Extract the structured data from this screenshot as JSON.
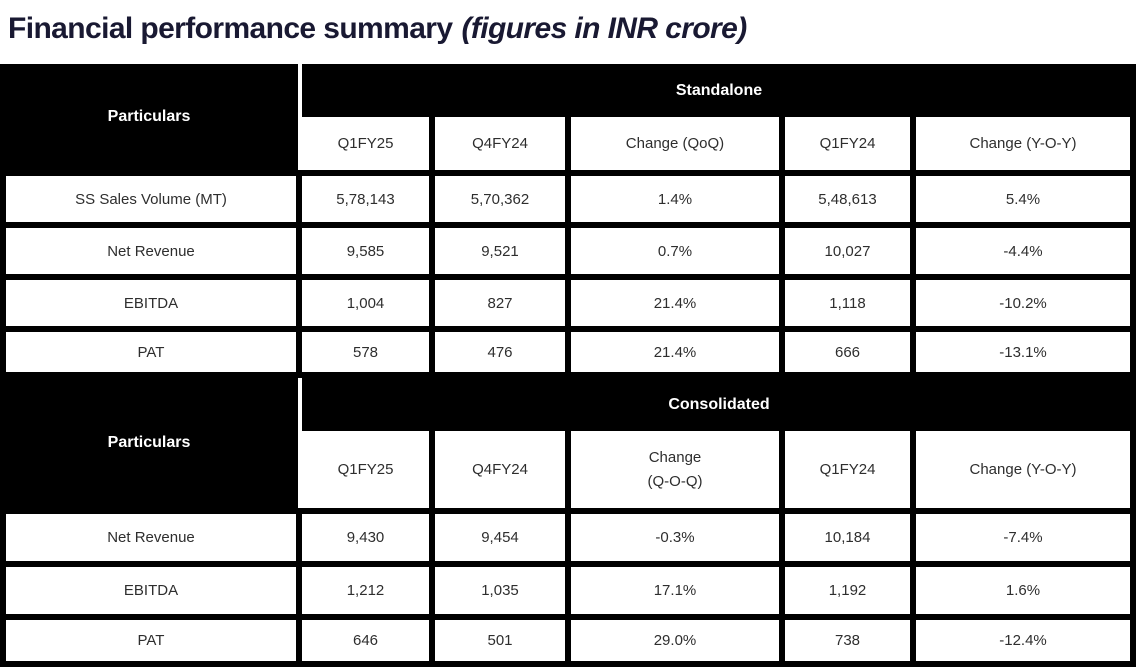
{
  "title": {
    "main": "Financial performance summary",
    "note": "(figures in INR crore)"
  },
  "colors": {
    "header_bg": "#000000",
    "header_text": "#ffffff",
    "title_text": "#191932",
    "border": "#000000",
    "cell_text": "#2e2e2e",
    "cell_bg": "#ffffff"
  },
  "sections": [
    {
      "name": "Standalone",
      "particulars_label": "Particulars",
      "columns": [
        "Q1FY25",
        "Q4FY24",
        "Change (QoQ)",
        "Q1FY24",
        "Change (Y-O-Y)"
      ],
      "rows": [
        {
          "label": "SS Sales Volume (MT)",
          "values": [
            "5,78,143",
            "5,70,362",
            "1.4%",
            "5,48,613",
            "5.4%"
          ]
        },
        {
          "label": "Net Revenue",
          "values": [
            "9,585",
            "9,521",
            "0.7%",
            "10,027",
            "-4.4%"
          ]
        },
        {
          "label": "EBITDA",
          "values": [
            "1,004",
            "827",
            "21.4%",
            "1,118",
            "-10.2%"
          ]
        },
        {
          "label": "PAT",
          "values": [
            "578",
            "476",
            "21.4%",
            "666",
            "-13.1%"
          ]
        }
      ]
    },
    {
      "name": "Consolidated",
      "particulars_label": "Particulars",
      "columns": [
        "Q1FY25",
        "Q4FY24",
        "Change\n(Q-O-Q)",
        "Q1FY24",
        "Change (Y-O-Y)"
      ],
      "rows": [
        {
          "label": "Net Revenue",
          "values": [
            "9,430",
            "9,454",
            "-0.3%",
            "10,184",
            "-7.4%"
          ]
        },
        {
          "label": "EBITDA",
          "values": [
            "1,212",
            "1,035",
            "17.1%",
            "1,192",
            "1.6%"
          ]
        },
        {
          "label": "PAT",
          "values": [
            "646",
            "501",
            "29.0%",
            "738",
            "-12.4%"
          ]
        }
      ]
    }
  ]
}
